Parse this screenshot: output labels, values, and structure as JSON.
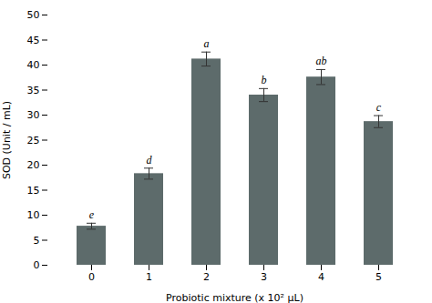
{
  "chart_data": {
    "type": "bar",
    "categories": [
      "0",
      "1",
      "2",
      "3",
      "4",
      "5"
    ],
    "values": [
      7.8,
      18.3,
      41.2,
      34.0,
      37.6,
      28.7
    ],
    "errors": [
      0.6,
      1.1,
      1.4,
      1.3,
      1.5,
      1.2
    ],
    "letters": [
      "e",
      "d",
      "a",
      "b",
      "ab",
      "c"
    ],
    "color": "#5d6b6b",
    "xlabel": "Probiotic mixture (x 10² μL)",
    "ylabel": "SOD (Unit / mL)",
    "ylim": [
      0,
      50
    ],
    "yticks": [
      0,
      5,
      10,
      15,
      20,
      25,
      30,
      35,
      40,
      45,
      50
    ],
    "grid": false
  }
}
